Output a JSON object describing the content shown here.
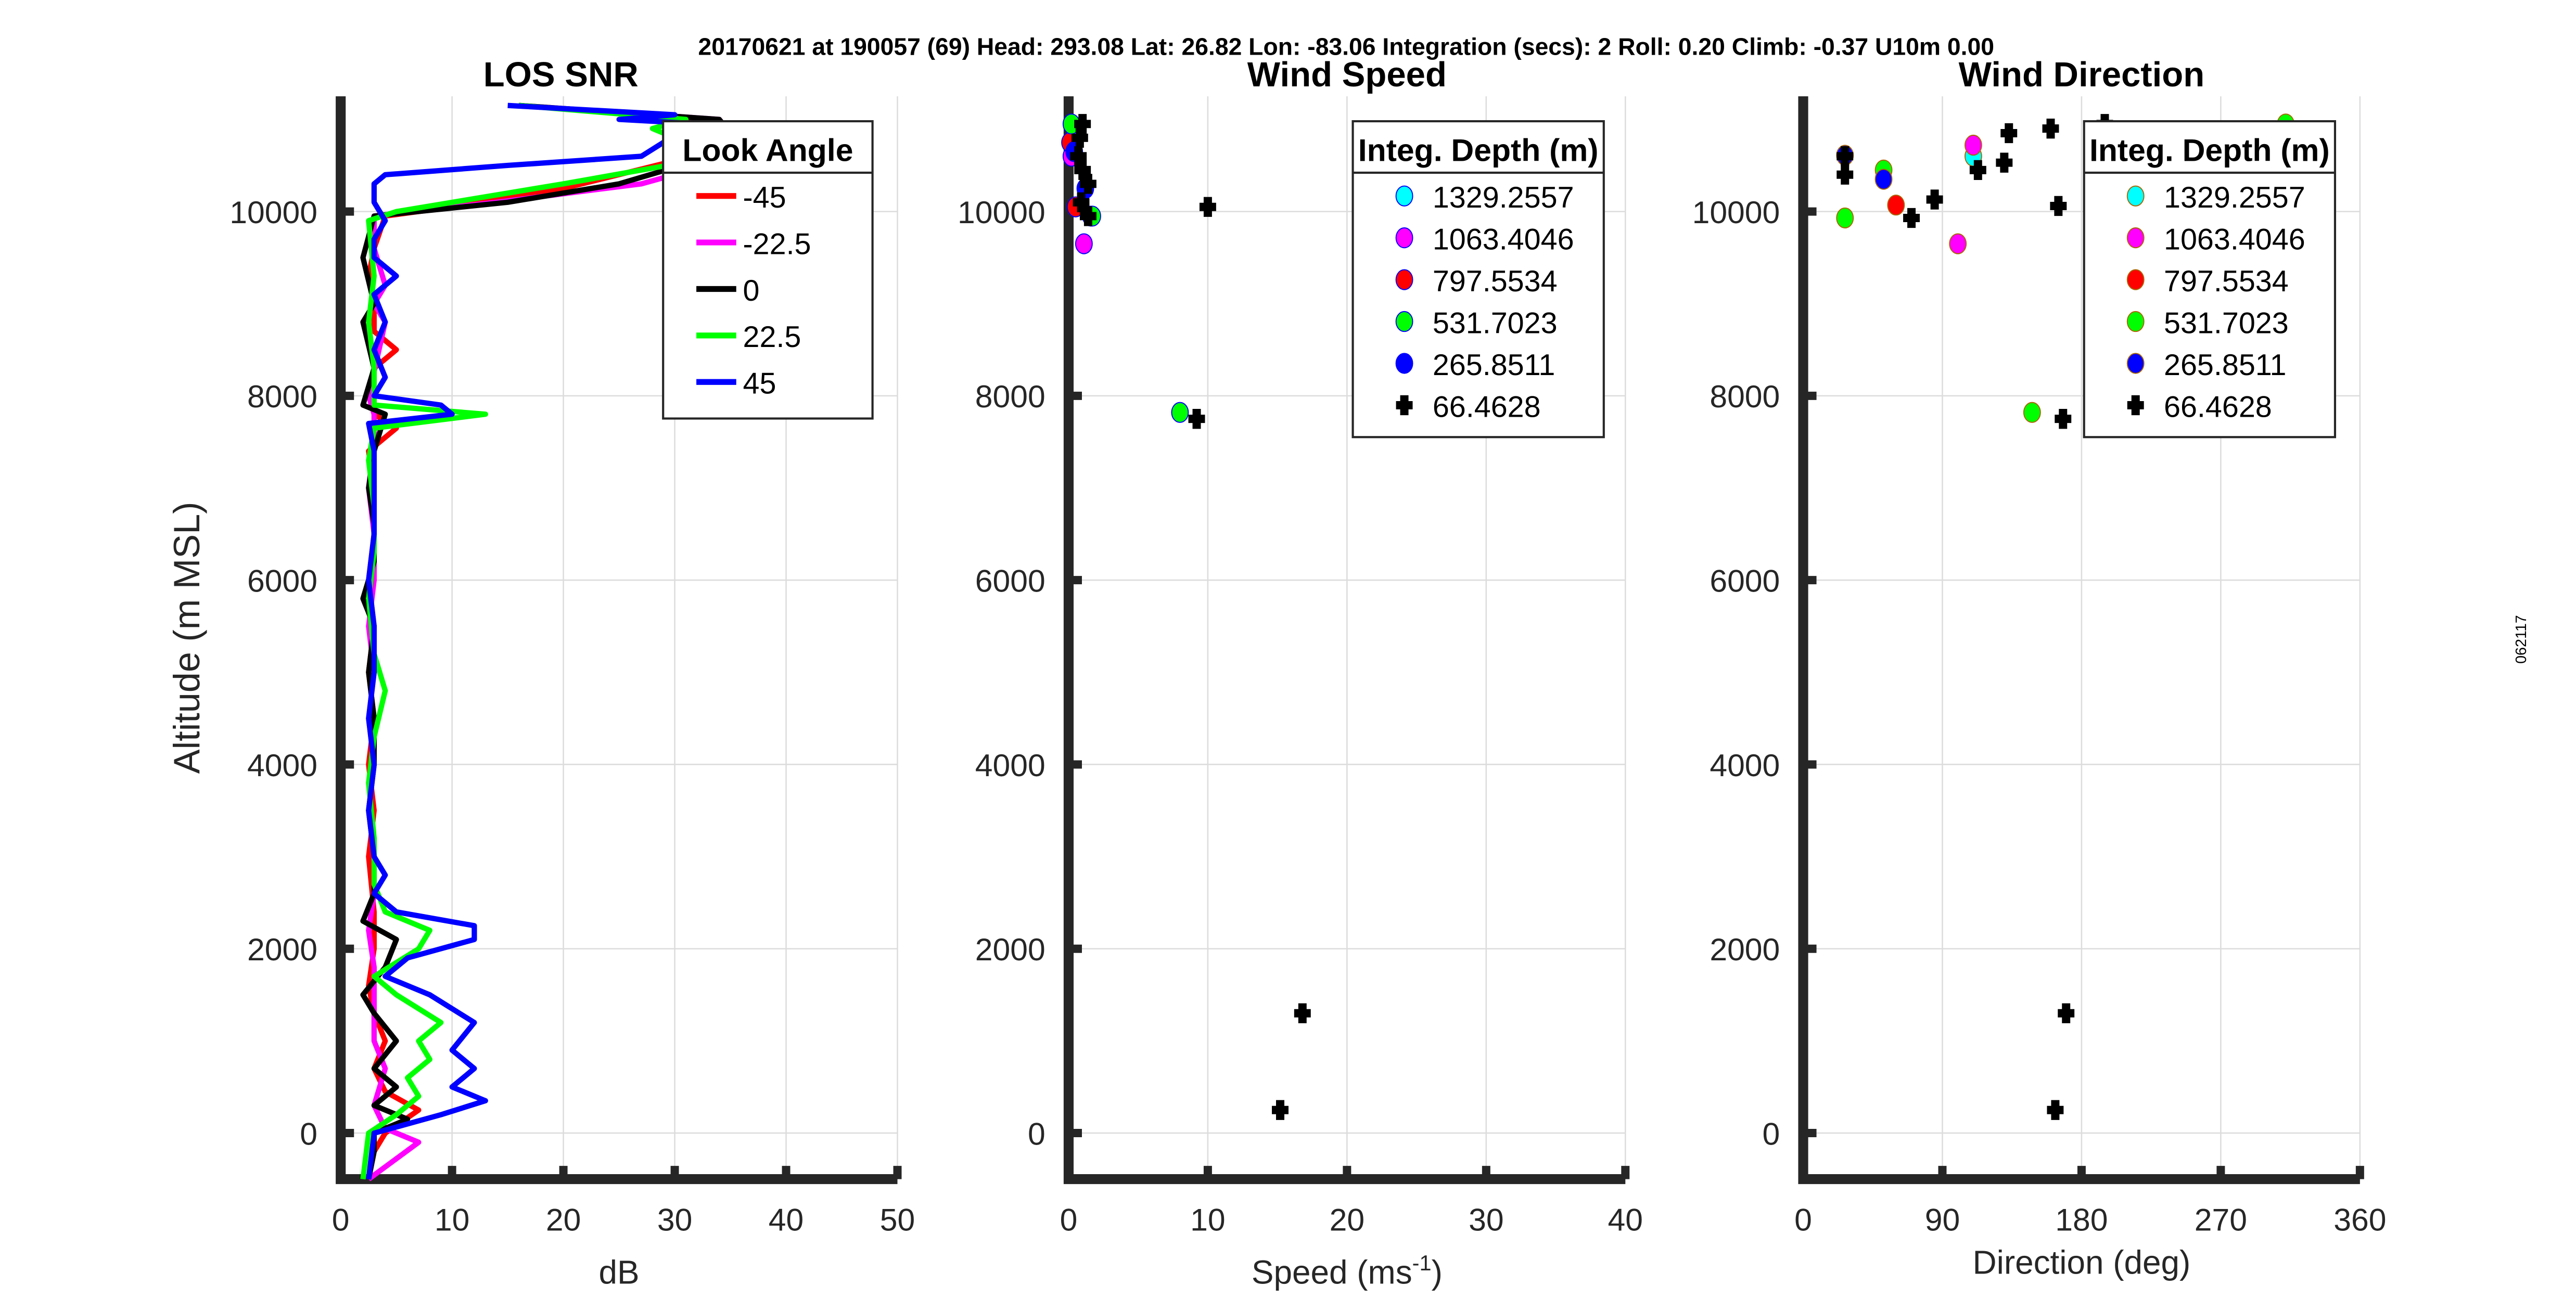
{
  "suptitle": "20170621 at 190057 (69)  Head: 293.08  Lat: 26.82  Lon: -83.06  Integration (secs): 2  Roll: 0.20  Climb: -0.37  U10m 0.00",
  "side_label": "062117",
  "ylabel": "Altitude (m MSL)",
  "chart_data": [
    {
      "type": "line",
      "title": "LOS SNR",
      "xlabel": "dB",
      "xlim": [
        0,
        50
      ],
      "ylim": [
        -500,
        11250
      ],
      "xticks": [
        0,
        10,
        20,
        30,
        40,
        50
      ],
      "yticks": [
        0,
        2000,
        4000,
        6000,
        8000,
        10000
      ],
      "grid": true,
      "legend": {
        "title": "Look Angle",
        "placement": "top-right"
      },
      "series": [
        {
          "name": "-45",
          "color": "#ff0000",
          "points": [
            [
              2.5,
              -500
            ],
            [
              3,
              -200
            ],
            [
              4,
              0
            ],
            [
              7,
              250
            ],
            [
              4,
              450
            ],
            [
              3,
              700
            ],
            [
              4,
              1000
            ],
            [
              3,
              1300
            ],
            [
              2.5,
              1600
            ],
            [
              3,
              2000
            ],
            [
              3,
              2400
            ],
            [
              2.5,
              3000
            ],
            [
              3,
              3500
            ],
            [
              2.5,
              4000
            ],
            [
              3,
              4500
            ],
            [
              2.5,
              5000
            ],
            [
              3,
              5500
            ],
            [
              2.5,
              6000
            ],
            [
              3,
              6500
            ],
            [
              3,
              7000
            ],
            [
              2.5,
              7400
            ],
            [
              5,
              7650
            ],
            [
              3,
              7800
            ],
            [
              3,
              8000
            ],
            [
              3,
              8300
            ],
            [
              5,
              8500
            ],
            [
              3,
              8700
            ],
            [
              3,
              9000
            ],
            [
              2.5,
              9300
            ],
            [
              3,
              9600
            ],
            [
              4,
              9950
            ],
            [
              10,
              10050
            ],
            [
              20,
              10250
            ],
            [
              30,
              10550
            ],
            [
              34,
              10800
            ],
            [
              33,
              11000
            ],
            [
              16,
              11150
            ]
          ]
        },
        {
          "name": "-22.5",
          "color": "#ff00ff",
          "points": [
            [
              2.5,
              -500
            ],
            [
              7,
              -100
            ],
            [
              4,
              50
            ],
            [
              3,
              300
            ],
            [
              4,
              700
            ],
            [
              3,
              1000
            ],
            [
              3,
              1400
            ],
            [
              3,
              1800
            ],
            [
              2.5,
              2200
            ],
            [
              3,
              2600
            ],
            [
              3,
              3000
            ],
            [
              2.5,
              3500
            ],
            [
              3,
              4000
            ],
            [
              2.5,
              4500
            ],
            [
              3,
              5000
            ],
            [
              2.5,
              5500
            ],
            [
              3,
              6000
            ],
            [
              3,
              6500
            ],
            [
              2.5,
              7000
            ],
            [
              3,
              7500
            ],
            [
              3,
              7800
            ],
            [
              2.5,
              8000
            ],
            [
              4,
              8800
            ],
            [
              3,
              9000
            ],
            [
              4,
              9200
            ],
            [
              3,
              9600
            ],
            [
              3,
              9950
            ],
            [
              14,
              10100
            ],
            [
              27,
              10300
            ],
            [
              33,
              10500
            ],
            [
              35,
              10850
            ],
            [
              34,
              11000
            ],
            [
              16,
              11150
            ]
          ]
        },
        {
          "name": "0",
          "color": "#000000",
          "points": [
            [
              2.5,
              -500
            ],
            [
              3,
              -200
            ],
            [
              3,
              0
            ],
            [
              6,
              150
            ],
            [
              3,
              300
            ],
            [
              5,
              500
            ],
            [
              3,
              700
            ],
            [
              5,
              1000
            ],
            [
              3,
              1300
            ],
            [
              2,
              1500
            ],
            [
              4,
              1800
            ],
            [
              5,
              2100
            ],
            [
              2,
              2300
            ],
            [
              3,
              2600
            ],
            [
              3,
              3000
            ],
            [
              2.5,
              3500
            ],
            [
              3,
              4000
            ],
            [
              3,
              4500
            ],
            [
              2.5,
              5000
            ],
            [
              3,
              5500
            ],
            [
              2,
              5800
            ],
            [
              3,
              6200
            ],
            [
              3,
              6600
            ],
            [
              2.5,
              7000
            ],
            [
              3,
              7400
            ],
            [
              4,
              7800
            ],
            [
              2,
              7900
            ],
            [
              3,
              8300
            ],
            [
              2,
              8800
            ],
            [
              3,
              9000
            ],
            [
              2,
              9500
            ],
            [
              3,
              9950
            ],
            [
              15,
              10100
            ],
            [
              25,
              10300
            ],
            [
              32,
              10550
            ],
            [
              35,
              10850
            ],
            [
              34,
              11000
            ],
            [
              16,
              11150
            ]
          ]
        },
        {
          "name": "22.5",
          "color": "#00ff00",
          "points": [
            [
              2,
              -500
            ],
            [
              2.5,
              0
            ],
            [
              5,
              200
            ],
            [
              7,
              400
            ],
            [
              6,
              600
            ],
            [
              8,
              800
            ],
            [
              7,
              1000
            ],
            [
              9,
              1200
            ],
            [
              5,
              1500
            ],
            [
              3,
              1700
            ],
            [
              7,
              2000
            ],
            [
              8,
              2200
            ],
            [
              4,
              2400
            ],
            [
              3,
              2700
            ],
            [
              3,
              3200
            ],
            [
              2.5,
              3800
            ],
            [
              3,
              4300
            ],
            [
              4,
              4800
            ],
            [
              3,
              5200
            ],
            [
              2.5,
              5800
            ],
            [
              3,
              6300
            ],
            [
              3,
              6800
            ],
            [
              2.5,
              7300
            ],
            [
              3,
              7650
            ],
            [
              13,
              7800
            ],
            [
              3,
              7900
            ],
            [
              3,
              8300
            ],
            [
              2.5,
              8800
            ],
            [
              3,
              9300
            ],
            [
              2.5,
              9900
            ],
            [
              5,
              10000
            ],
            [
              20,
              10300
            ],
            [
              34,
              10600
            ],
            [
              28,
              10900
            ],
            [
              31,
              11000
            ],
            [
              16,
              11150
            ]
          ]
        },
        {
          "name": "45",
          "color": "#0000ff",
          "points": [
            [
              2.5,
              -500
            ],
            [
              3,
              0
            ],
            [
              9,
              200
            ],
            [
              13,
              350
            ],
            [
              10,
              500
            ],
            [
              12,
              700
            ],
            [
              10,
              900
            ],
            [
              12,
              1200
            ],
            [
              8,
              1500
            ],
            [
              4,
              1700
            ],
            [
              6,
              1900
            ],
            [
              12,
              2100
            ],
            [
              12,
              2250
            ],
            [
              5,
              2400
            ],
            [
              3,
              2600
            ],
            [
              4,
              2800
            ],
            [
              3,
              3000
            ],
            [
              2.5,
              3500
            ],
            [
              3,
              4000
            ],
            [
              2.5,
              4500
            ],
            [
              3,
              5000
            ],
            [
              3,
              5500
            ],
            [
              2.5,
              6000
            ],
            [
              3,
              6500
            ],
            [
              3,
              7000
            ],
            [
              3,
              7400
            ],
            [
              2.5,
              7700
            ],
            [
              10,
              7800
            ],
            [
              9,
              7900
            ],
            [
              3,
              8000
            ],
            [
              4,
              8200
            ],
            [
              3,
              8500
            ],
            [
              4,
              8800
            ],
            [
              3,
              9100
            ],
            [
              5,
              9300
            ],
            [
              3,
              9500
            ],
            [
              3,
              9700
            ],
            [
              4,
              9900
            ],
            [
              3,
              10100
            ],
            [
              3,
              10300
            ],
            [
              4,
              10400
            ],
            [
              15,
              10500
            ],
            [
              27,
              10600
            ],
            [
              29,
              10750
            ],
            [
              40,
              10900
            ],
            [
              25,
              11000
            ],
            [
              30,
              11050
            ],
            [
              15,
              11150
            ]
          ]
        }
      ]
    },
    {
      "type": "scatter",
      "title": "Wind Speed",
      "xlabel": "Speed (ms",
      "xlabel_sup": "-1",
      "xlabel_end": ")",
      "xlim": [
        0,
        40
      ],
      "ylim": [
        -500,
        11250
      ],
      "xticks": [
        0,
        10,
        20,
        30,
        40
      ],
      "yticks": [
        0,
        2000,
        4000,
        6000,
        8000,
        10000
      ],
      "grid": true,
      "legend": {
        "title": "Integ. Depth (m)",
        "placement": "top-right"
      },
      "series": [
        {
          "name": "1329.2557",
          "color": "#00ffff",
          "marker": "circle",
          "points": [
            [
              1.6,
              9950
            ]
          ]
        },
        {
          "name": "1063.4046",
          "color": "#ff00ff",
          "marker": "circle",
          "points": [
            [
              1.1,
              9650
            ],
            [
              0.2,
              10600
            ]
          ]
        },
        {
          "name": "797.5534",
          "color": "#ff0000",
          "marker": "circle",
          "points": [
            [
              0.1,
              10750
            ],
            [
              0.5,
              10050
            ]
          ]
        },
        {
          "name": "531.7023",
          "color": "#00ff00",
          "marker": "circle",
          "points": [
            [
              0.2,
              10950
            ],
            [
              1.7,
              9950
            ],
            [
              8,
              7820
            ]
          ]
        },
        {
          "name": "265.8511",
          "color": "#0000ff",
          "marker": "circle",
          "points": [
            [
              0.4,
              10650
            ],
            [
              1.2,
              10250
            ]
          ]
        },
        {
          "name": "66.4628",
          "color": "#000000",
          "marker": "cross",
          "points": [
            [
              1,
              10950
            ],
            [
              0.8,
              10800
            ],
            [
              0.7,
              10600
            ],
            [
              1,
              10450
            ],
            [
              1.4,
              10300
            ],
            [
              0.9,
              10100
            ],
            [
              1.4,
              9950
            ],
            [
              10,
              10050
            ],
            [
              9.2,
              7750
            ],
            [
              16.8,
              1300
            ],
            [
              15.2,
              250
            ]
          ]
        }
      ]
    },
    {
      "type": "scatter",
      "title": "Wind Direction",
      "xlabel": "Direction (deg)",
      "xlim": [
        0,
        360
      ],
      "ylim": [
        -500,
        11250
      ],
      "xticks": [
        0,
        90,
        180,
        270,
        360
      ],
      "yticks": [
        0,
        2000,
        4000,
        6000,
        8000,
        10000
      ],
      "grid": true,
      "legend": {
        "title": "Integ. Depth (m)",
        "placement": "top-right"
      },
      "series": [
        {
          "name": "1329.2557",
          "color": "#00ffff",
          "marker": "circle",
          "points": [
            [
              110,
              10600
            ]
          ]
        },
        {
          "name": "1063.4046",
          "color": "#ff00ff",
          "marker": "circle",
          "points": [
            [
              110,
              10720
            ],
            [
              100,
              9650
            ]
          ]
        },
        {
          "name": "797.5534",
          "color": "#ff0000",
          "marker": "circle",
          "points": [
            [
              60,
              10070
            ]
          ]
        },
        {
          "name": "531.7023",
          "color": "#00ff00",
          "marker": "circle",
          "points": [
            [
              27,
              9930
            ],
            [
              52,
              10450
            ],
            [
              148,
              7820
            ],
            [
              312,
              10950
            ]
          ]
        },
        {
          "name": "265.8511",
          "color": "#0000ff",
          "marker": "circle",
          "points": [
            [
              27,
              10610
            ],
            [
              52,
              10350
            ]
          ]
        },
        {
          "name": "66.4628",
          "color": "#000000",
          "marker": "cross",
          "points": [
            [
              27,
              10600
            ],
            [
              27,
              10400
            ],
            [
              70,
              9930
            ],
            [
              85,
              10130
            ],
            [
              113,
              10450
            ],
            [
              133,
              10850
            ],
            [
              130,
              10530
            ],
            [
              160,
              10900
            ],
            [
              165,
              10060
            ],
            [
              195,
              10950
            ],
            [
              168,
              7750
            ],
            [
              170,
              1300
            ],
            [
              163,
              250
            ]
          ]
        }
      ]
    }
  ]
}
